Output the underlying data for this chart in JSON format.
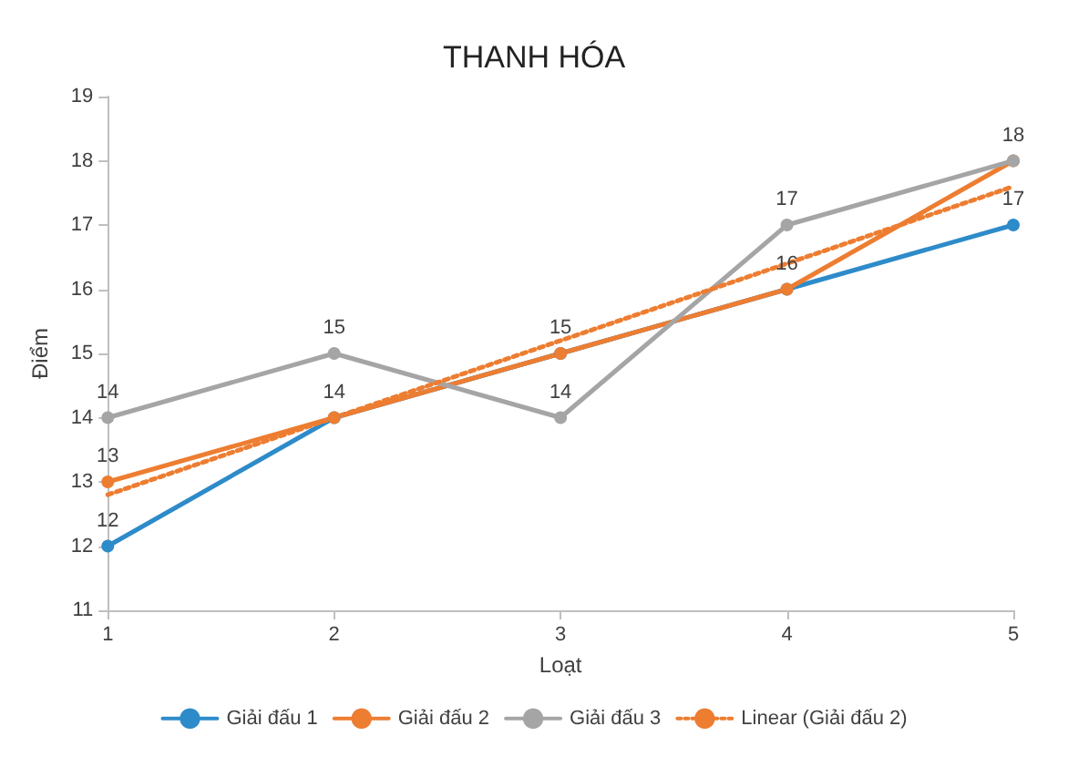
{
  "chart_data": {
    "type": "line",
    "title": "THANH HÓA",
    "xlabel": "Loạt",
    "ylabel": "Điểm",
    "x": [
      1,
      2,
      3,
      4,
      5
    ],
    "series": [
      {
        "name": "Giải đấu 1",
        "color": "#2e8bc9",
        "values": [
          12,
          14,
          15,
          16,
          17
        ],
        "value_labels": [
          "12",
          null,
          null,
          null,
          "17"
        ]
      },
      {
        "name": "Giải đấu 2",
        "color": "#ed7d31",
        "values": [
          13,
          14,
          15,
          16,
          18
        ],
        "value_labels": [
          "13",
          "14",
          "15",
          "16",
          "18"
        ]
      },
      {
        "name": "Giải đấu 3",
        "color": "#a5a5a5",
        "values": [
          14,
          15,
          14,
          17,
          18
        ],
        "value_labels": [
          "14",
          "15",
          "14",
          "17",
          null
        ]
      },
      {
        "name": "Linear (Giải đấu 2)",
        "color": "#ed7d31",
        "x": [
          1,
          5
        ],
        "values": [
          12.8,
          17.6
        ],
        "marker": "none",
        "line_style": "dotted"
      }
    ],
    "xlim": [
      1,
      5
    ],
    "xticks": [
      1,
      2,
      3,
      4,
      5
    ],
    "ylim": [
      11,
      19
    ],
    "yticks": [
      11,
      12,
      13,
      14,
      15,
      16,
      17,
      18,
      19
    ],
    "grid": false,
    "legend": "bottom",
    "marker": "circle",
    "line_style": "solid"
  }
}
